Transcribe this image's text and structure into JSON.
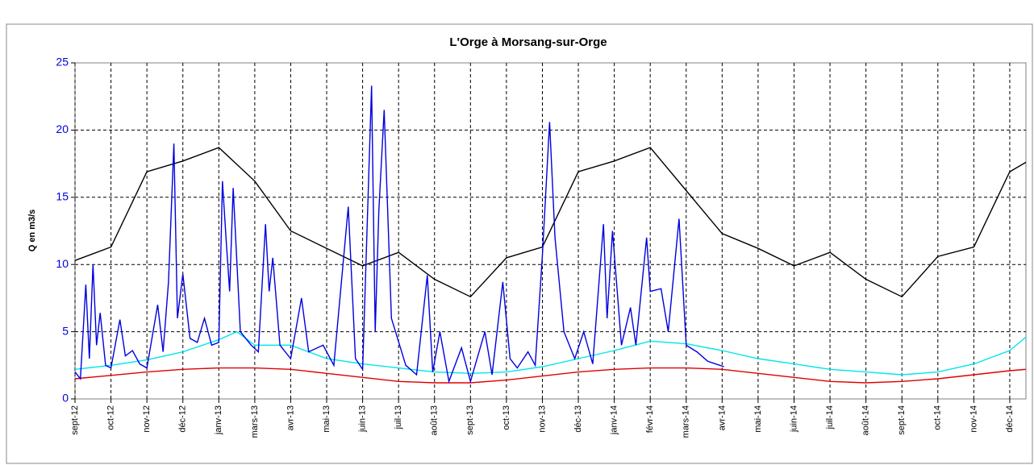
{
  "chart_data": {
    "type": "line",
    "title": "L'Orge à Morsang-sur-Orge",
    "y_label": "Q en m3/s",
    "categories": [
      "sept-12",
      "oct-12",
      "nov-12",
      "déc-12",
      "janv-13",
      "mars-13",
      "avr-13",
      "mai-13",
      "juin-13",
      "juil-13",
      "août-13",
      "sept-13",
      "oct-13",
      "nov-13",
      "déc-13",
      "janv-14",
      "févr-14",
      "mars-14",
      "avr-14",
      "mai-14",
      "juin-14",
      "juil-14",
      "août-14",
      "sept-14",
      "oct-14",
      "nov-14",
      "déc-14"
    ],
    "xlim": [
      0,
      26.45
    ],
    "ylim": [
      0,
      25
    ],
    "yticks": [
      0,
      5,
      10,
      15,
      20,
      25
    ],
    "grid": true,
    "series": [
      {
        "color": "#000000",
        "x": [
          0,
          1,
          2,
          3,
          4,
          5,
          6,
          7,
          8,
          9,
          10,
          11,
          12,
          13,
          14,
          15,
          16,
          17,
          18,
          19,
          20,
          21,
          22,
          23,
          24,
          25,
          26,
          26.45
        ],
        "values": [
          10.3,
          11.3,
          16.9,
          17.7,
          18.7,
          16.2,
          12.5,
          11.2,
          9.9,
          10.9,
          8.9,
          7.6,
          10.5,
          11.3,
          16.9,
          17.7,
          18.7,
          15.5,
          12.3,
          11.2,
          9.9,
          10.9,
          8.9,
          7.6,
          10.6,
          11.3,
          16.9,
          17.6
        ]
      },
      {
        "color": "#00e5ee",
        "x": [
          0,
          1,
          2,
          3,
          4,
          4.5,
          5,
          6,
          7,
          8,
          9,
          10,
          11,
          12,
          13,
          14,
          15,
          16,
          17,
          18,
          19,
          20,
          21,
          22,
          23,
          24,
          25,
          26,
          26.45
        ],
        "values": [
          2.2,
          2.5,
          2.9,
          3.5,
          4.4,
          5.0,
          4.0,
          4.0,
          3.0,
          2.6,
          2.3,
          2.0,
          1.9,
          2.0,
          2.4,
          3.0,
          3.6,
          4.3,
          4.1,
          3.6,
          3.0,
          2.6,
          2.2,
          2.0,
          1.8,
          2.0,
          2.6,
          3.6,
          4.6
        ]
      },
      {
        "color": "#e00000",
        "x": [
          0,
          1,
          2,
          3,
          4,
          5,
          6,
          7,
          8,
          9,
          10,
          11,
          12,
          13,
          14,
          15,
          16,
          17,
          18,
          19,
          20,
          21,
          22,
          23,
          24,
          25,
          26,
          26.45
        ],
        "values": [
          1.5,
          1.75,
          2.0,
          2.2,
          2.3,
          2.3,
          2.2,
          1.9,
          1.6,
          1.3,
          1.2,
          1.2,
          1.4,
          1.7,
          2.0,
          2.2,
          2.3,
          2.3,
          2.2,
          1.9,
          1.6,
          1.3,
          1.2,
          1.3,
          1.5,
          1.8,
          2.1,
          2.2
        ]
      },
      {
        "color": "#0000e0",
        "x": [
          0,
          0.15,
          0.3,
          0.4,
          0.5,
          0.6,
          0.7,
          0.85,
          1.0,
          1.25,
          1.4,
          1.6,
          1.8,
          2.0,
          2.3,
          2.45,
          2.6,
          2.75,
          2.85,
          3.0,
          3.2,
          3.4,
          3.6,
          3.8,
          4.0,
          4.1,
          4.2,
          4.3,
          4.4,
          4.6,
          4.9,
          5.1,
          5.3,
          5.4,
          5.5,
          5.7,
          6.0,
          6.3,
          6.5,
          6.9,
          7.2,
          7.6,
          7.8,
          8.0,
          8.25,
          8.35,
          8.45,
          8.6,
          8.8,
          9.2,
          9.5,
          9.8,
          9.95,
          10.15,
          10.4,
          10.75,
          11.0,
          11.4,
          11.6,
          11.9,
          12.1,
          12.3,
          12.6,
          12.8,
          13.0,
          13.2,
          13.35,
          13.6,
          13.9,
          14.15,
          14.4,
          14.7,
          14.8,
          14.95,
          15.2,
          15.45,
          15.6,
          15.9,
          16.0,
          16.3,
          16.5,
          16.8,
          17.0,
          17.3,
          17.6,
          18.05
        ],
        "values": [
          2.0,
          1.5,
          8.5,
          3,
          10,
          4,
          6.4,
          2.5,
          2.3,
          5.9,
          3.2,
          3.6,
          2.6,
          2.3,
          7.0,
          3.5,
          8.7,
          19,
          6,
          9.3,
          4.5,
          4.2,
          6.0,
          4,
          4.2,
          16.2,
          12,
          8,
          15.7,
          5,
          4,
          3.5,
          13,
          8,
          10.5,
          4,
          3,
          7.5,
          3.5,
          4,
          2.5,
          14.3,
          3,
          2.2,
          23.3,
          5,
          14,
          21.5,
          6,
          2.5,
          1.8,
          9.2,
          2,
          5,
          1.3,
          3.8,
          1.3,
          5,
          1.8,
          8.7,
          3,
          2.3,
          3.5,
          2.5,
          10.7,
          20.6,
          12,
          5,
          3,
          5,
          2.6,
          13,
          6,
          12.5,
          4,
          6.8,
          4,
          12,
          8,
          8.2,
          5,
          13.4,
          4,
          3.5,
          2.8,
          2.4
        ]
      }
    ]
  }
}
